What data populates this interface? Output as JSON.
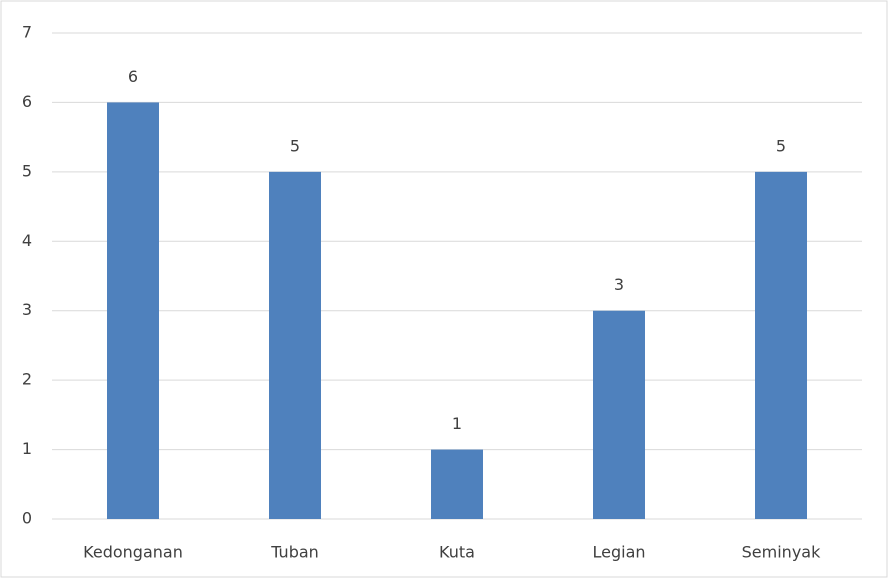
{
  "chart_data": {
    "type": "bar",
    "categories": [
      "Kedonganan",
      "Tuban",
      "Kuta",
      "Legian",
      "Seminyak"
    ],
    "values": [
      6,
      5,
      1,
      3,
      5
    ],
    "color": "#4f81bd",
    "ylim": [
      0,
      7
    ],
    "yticks": [
      0,
      1,
      2,
      3,
      4,
      5,
      6,
      7
    ],
    "grid": true
  }
}
